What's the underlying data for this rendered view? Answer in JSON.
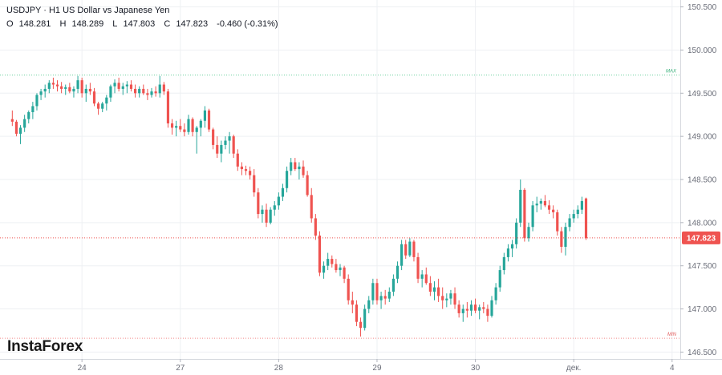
{
  "header": {
    "title": "USDJPY · H1 US Dollar vs Japanese Yen",
    "ohlc": {
      "o_label": "O",
      "o": "148.281",
      "h_label": "H",
      "h": "148.289",
      "l_label": "L",
      "l": "147.803",
      "c_label": "C",
      "c": "147.823",
      "change": "-0.460 (-0.31%)"
    }
  },
  "branding": {
    "logo": "InstaForex"
  },
  "last_price": {
    "value": 147.823,
    "label": "147.823"
  },
  "markers": {
    "max_label": "MAX",
    "max_value": 149.71,
    "min_label": "MIN",
    "min_value": 146.66
  },
  "colors": {
    "up": "#26a69a",
    "down": "#ef5350",
    "max_line": "#6ccf9d",
    "min_line": "#f28b8b",
    "grid": "#eef0f3"
  },
  "chart_data": {
    "type": "candlestick",
    "symbol": "USDJPY",
    "timeframe": "H1",
    "ylim": [
      146.42,
      150.58
    ],
    "y_ticks": [
      "150.500",
      "150.000",
      "149.500",
      "149.000",
      "148.500",
      "148.000",
      "147.500",
      "147.000",
      "146.500"
    ],
    "x_ticks": [
      {
        "label": "24",
        "index": 17
      },
      {
        "label": "27",
        "index": 41
      },
      {
        "label": "28",
        "index": 65
      },
      {
        "label": "29",
        "index": 89
      },
      {
        "label": "30",
        "index": 113
      },
      {
        "label": "дек.",
        "index": 137
      },
      {
        "label": "4",
        "index": 161
      }
    ],
    "x_index_range": [
      -3,
      163
    ],
    "legend": "none",
    "grid": true,
    "candles": [
      [
        149.2,
        149.3,
        149.12,
        149.17
      ],
      [
        149.17,
        149.19,
        149.0,
        149.03
      ],
      [
        149.03,
        149.13,
        148.91,
        149.1
      ],
      [
        149.1,
        149.25,
        149.05,
        149.2
      ],
      [
        149.2,
        149.3,
        149.15,
        149.28
      ],
      [
        149.28,
        149.4,
        149.2,
        149.35
      ],
      [
        149.35,
        149.5,
        149.3,
        149.48
      ],
      [
        149.48,
        149.55,
        149.42,
        149.52
      ],
      [
        149.52,
        149.6,
        149.45,
        149.55
      ],
      [
        149.55,
        149.65,
        149.5,
        149.62
      ],
      [
        149.62,
        149.68,
        149.55,
        149.6
      ],
      [
        149.6,
        149.65,
        149.52,
        149.58
      ],
      [
        149.58,
        149.63,
        149.5,
        149.55
      ],
      [
        149.55,
        149.6,
        149.48,
        149.57
      ],
      [
        149.57,
        149.62,
        149.5,
        149.52
      ],
      [
        149.52,
        149.58,
        149.45,
        149.55
      ],
      [
        149.55,
        149.7,
        149.5,
        149.65
      ],
      [
        149.65,
        149.68,
        149.45,
        149.5
      ],
      [
        149.5,
        149.6,
        149.4,
        149.55
      ],
      [
        149.55,
        149.62,
        149.48,
        149.52
      ],
      [
        149.52,
        149.56,
        149.35,
        149.38
      ],
      [
        149.38,
        149.4,
        149.25,
        149.32
      ],
      [
        149.32,
        149.4,
        149.28,
        149.38
      ],
      [
        149.38,
        149.48,
        149.3,
        149.45
      ],
      [
        149.45,
        149.6,
        149.4,
        149.58
      ],
      [
        149.58,
        149.66,
        149.5,
        149.62
      ],
      [
        149.62,
        149.68,
        149.52,
        149.55
      ],
      [
        149.55,
        149.62,
        149.48,
        149.58
      ],
      [
        149.58,
        149.64,
        149.5,
        149.6
      ],
      [
        149.6,
        149.65,
        149.52,
        149.55
      ],
      [
        149.55,
        149.6,
        149.45,
        149.5
      ],
      [
        149.5,
        149.58,
        149.45,
        149.55
      ],
      [
        149.55,
        149.6,
        149.48,
        149.5
      ],
      [
        149.5,
        149.55,
        149.42,
        149.48
      ],
      [
        149.48,
        149.56,
        149.45,
        149.52
      ],
      [
        149.52,
        149.58,
        149.46,
        149.5
      ],
      [
        149.5,
        149.7,
        149.45,
        149.6
      ],
      [
        149.6,
        149.63,
        149.48,
        149.52
      ],
      [
        149.52,
        149.55,
        149.1,
        149.15
      ],
      [
        149.15,
        149.2,
        149.02,
        149.1
      ],
      [
        149.1,
        149.18,
        149.0,
        149.12
      ],
      [
        149.12,
        149.2,
        149.05,
        149.08
      ],
      [
        149.08,
        149.15,
        149.0,
        149.05
      ],
      [
        149.05,
        149.25,
        149.02,
        149.2
      ],
      [
        149.2,
        149.22,
        149.0,
        149.05
      ],
      [
        149.05,
        149.12,
        148.8,
        149.1
      ],
      [
        149.1,
        149.2,
        149.0,
        149.18
      ],
      [
        149.18,
        149.35,
        149.1,
        149.3
      ],
      [
        149.3,
        149.32,
        149.05,
        149.08
      ],
      [
        149.08,
        149.1,
        148.85,
        148.9
      ],
      [
        148.9,
        149.0,
        148.75,
        148.8
      ],
      [
        148.8,
        148.95,
        148.7,
        148.9
      ],
      [
        148.9,
        149.0,
        148.85,
        148.95
      ],
      [
        148.95,
        149.05,
        148.8,
        149.0
      ],
      [
        149.0,
        149.02,
        148.75,
        148.8
      ],
      [
        148.8,
        148.85,
        148.6,
        148.65
      ],
      [
        148.65,
        148.7,
        148.55,
        148.62
      ],
      [
        148.62,
        148.66,
        148.55,
        148.6
      ],
      [
        148.6,
        148.65,
        148.5,
        148.55
      ],
      [
        148.55,
        148.62,
        148.3,
        148.35
      ],
      [
        148.35,
        148.4,
        148.05,
        148.1
      ],
      [
        148.1,
        148.2,
        148.0,
        148.15
      ],
      [
        148.15,
        148.22,
        147.95,
        148.0
      ],
      [
        148.0,
        148.18,
        147.98,
        148.15
      ],
      [
        148.15,
        148.25,
        148.08,
        148.2
      ],
      [
        148.2,
        148.35,
        148.15,
        148.3
      ],
      [
        148.3,
        148.45,
        148.25,
        148.4
      ],
      [
        148.4,
        148.65,
        148.35,
        148.6
      ],
      [
        148.6,
        148.75,
        148.55,
        148.7
      ],
      [
        148.7,
        148.75,
        148.6,
        148.62
      ],
      [
        148.62,
        148.7,
        148.5,
        148.65
      ],
      [
        148.65,
        148.72,
        148.52,
        148.55
      ],
      [
        148.55,
        148.6,
        148.3,
        148.32
      ],
      [
        148.32,
        148.4,
        148.0,
        148.05
      ],
      [
        148.05,
        148.1,
        147.8,
        147.85
      ],
      [
        147.85,
        147.9,
        147.38,
        147.42
      ],
      [
        147.42,
        147.55,
        147.35,
        147.5
      ],
      [
        147.5,
        147.65,
        147.45,
        147.58
      ],
      [
        147.58,
        147.62,
        147.48,
        147.52
      ],
      [
        147.52,
        147.58,
        147.42,
        147.45
      ],
      [
        147.45,
        147.52,
        147.38,
        147.48
      ],
      [
        147.48,
        147.5,
        147.3,
        147.35
      ],
      [
        147.35,
        147.4,
        147.05,
        147.1
      ],
      [
        147.1,
        147.2,
        146.95,
        147.05
      ],
      [
        147.05,
        147.1,
        146.8,
        146.85
      ],
      [
        146.85,
        146.9,
        146.68,
        146.78
      ],
      [
        146.78,
        147.05,
        146.75,
        147.0
      ],
      [
        147.0,
        147.15,
        146.95,
        147.1
      ],
      [
        147.1,
        147.35,
        147.05,
        147.3
      ],
      [
        147.3,
        147.35,
        147.05,
        147.1
      ],
      [
        147.1,
        147.2,
        147.0,
        147.15
      ],
      [
        147.15,
        147.22,
        147.05,
        147.12
      ],
      [
        147.12,
        147.25,
        147.08,
        147.2
      ],
      [
        147.2,
        147.4,
        147.15,
        147.35
      ],
      [
        147.35,
        147.55,
        147.3,
        147.5
      ],
      [
        147.5,
        147.8,
        147.45,
        147.75
      ],
      [
        147.75,
        147.8,
        147.58,
        147.62
      ],
      [
        147.62,
        147.82,
        147.6,
        147.78
      ],
      [
        147.78,
        147.8,
        147.55,
        147.6
      ],
      [
        147.6,
        147.65,
        147.3,
        147.35
      ],
      [
        147.35,
        147.45,
        147.25,
        147.4
      ],
      [
        147.4,
        147.48,
        147.28,
        147.3
      ],
      [
        147.3,
        147.38,
        147.15,
        147.2
      ],
      [
        147.2,
        147.32,
        147.1,
        147.25
      ],
      [
        147.25,
        147.35,
        147.08,
        147.15
      ],
      [
        147.15,
        147.25,
        147.0,
        147.1
      ],
      [
        147.1,
        147.18,
        147.02,
        147.12
      ],
      [
        147.12,
        147.22,
        147.05,
        147.18
      ],
      [
        147.18,
        147.25,
        147.0,
        147.05
      ],
      [
        147.05,
        147.1,
        146.9,
        146.95
      ],
      [
        146.95,
        147.05,
        146.85,
        147.0
      ],
      [
        147.0,
        147.08,
        146.9,
        146.98
      ],
      [
        146.98,
        147.1,
        146.92,
        147.05
      ],
      [
        147.05,
        147.12,
        146.95,
        146.98
      ],
      [
        146.98,
        147.05,
        146.88,
        147.02
      ],
      [
        147.02,
        147.08,
        146.95,
        147.0
      ],
      [
        147.0,
        147.05,
        146.85,
        146.92
      ],
      [
        146.92,
        147.15,
        146.9,
        147.1
      ],
      [
        147.1,
        147.3,
        147.05,
        147.25
      ],
      [
        147.25,
        147.5,
        147.2,
        147.45
      ],
      [
        147.45,
        147.65,
        147.4,
        147.6
      ],
      [
        147.6,
        147.75,
        147.55,
        147.7
      ],
      [
        147.7,
        147.8,
        147.6,
        147.75
      ],
      [
        147.75,
        148.05,
        147.7,
        148.0
      ],
      [
        148.0,
        148.5,
        147.95,
        148.38
      ],
      [
        148.38,
        148.4,
        147.78,
        147.82
      ],
      [
        147.82,
        148.0,
        147.78,
        147.95
      ],
      [
        147.95,
        148.25,
        147.9,
        148.2
      ],
      [
        148.2,
        148.3,
        148.12,
        148.22
      ],
      [
        148.22,
        148.28,
        148.15,
        148.25
      ],
      [
        148.25,
        148.32,
        148.18,
        148.2
      ],
      [
        148.2,
        148.26,
        148.1,
        148.15
      ],
      [
        148.15,
        148.2,
        148.05,
        148.12
      ],
      [
        148.12,
        148.15,
        147.85,
        147.9
      ],
      [
        147.9,
        147.95,
        147.65,
        147.72
      ],
      [
        147.72,
        148.0,
        147.62,
        147.95
      ],
      [
        147.95,
        148.1,
        147.9,
        148.05
      ],
      [
        148.05,
        148.15,
        148.0,
        148.1
      ],
      [
        148.1,
        148.2,
        148.05,
        148.15
      ],
      [
        148.15,
        148.3,
        148.1,
        148.25
      ],
      [
        148.28,
        148.29,
        147.8,
        147.82
      ]
    ]
  }
}
